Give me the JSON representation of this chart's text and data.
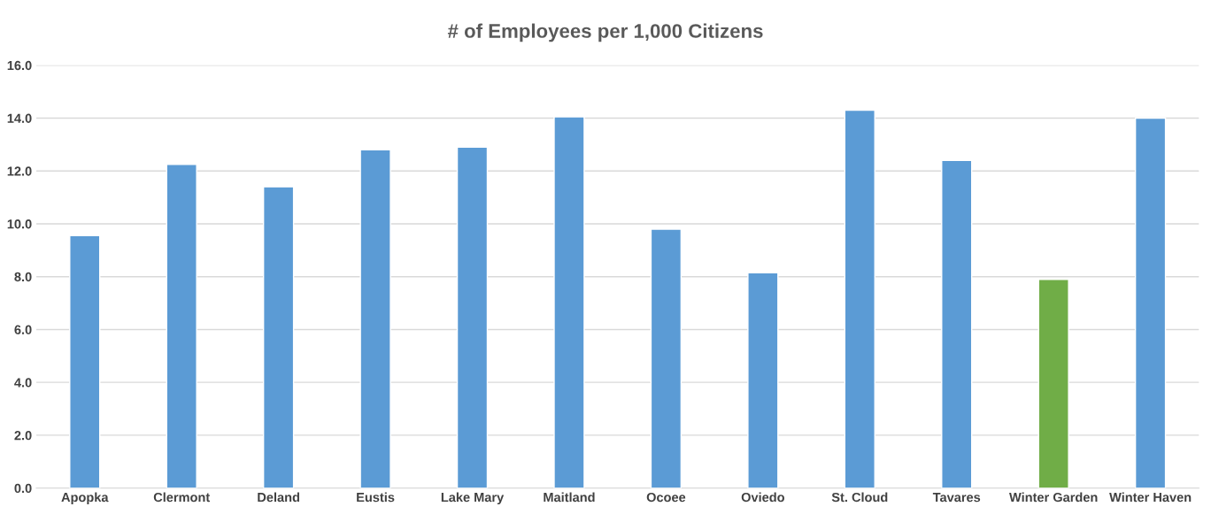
{
  "chart_data": {
    "type": "bar",
    "title": "# of Employees per 1,000 Citizens",
    "categories": [
      "Apopka",
      "Clermont",
      "Deland",
      "Eustis",
      "Lake Mary",
      "Maitland",
      "Ocoee",
      "Oviedo",
      "St. Cloud",
      "Tavares",
      "Winter Garden",
      "Winter Haven"
    ],
    "values": [
      9.55,
      12.25,
      11.4,
      12.8,
      12.9,
      14.05,
      9.8,
      8.15,
      14.3,
      12.4,
      7.9,
      14.0
    ],
    "colors": [
      "#5b9bd5",
      "#5b9bd5",
      "#5b9bd5",
      "#5b9bd5",
      "#5b9bd5",
      "#5b9bd5",
      "#5b9bd5",
      "#5b9bd5",
      "#5b9bd5",
      "#5b9bd5",
      "#70ad47",
      "#5b9bd5"
    ],
    "ylim": [
      0,
      16
    ],
    "yticks": [
      {
        "value": 0,
        "label": "0.0"
      },
      {
        "value": 2,
        "label": "2.0"
      },
      {
        "value": 4,
        "label": "4.0"
      },
      {
        "value": 6,
        "label": "6.0"
      },
      {
        "value": 8,
        "label": "8.0"
      },
      {
        "value": 10,
        "label": "10.0"
      },
      {
        "value": 12,
        "label": "12.0"
      },
      {
        "value": 14,
        "label": "14.0"
      },
      {
        "value": 16,
        "label": "16.0"
      }
    ],
    "grid": "y",
    "legend": false
  }
}
